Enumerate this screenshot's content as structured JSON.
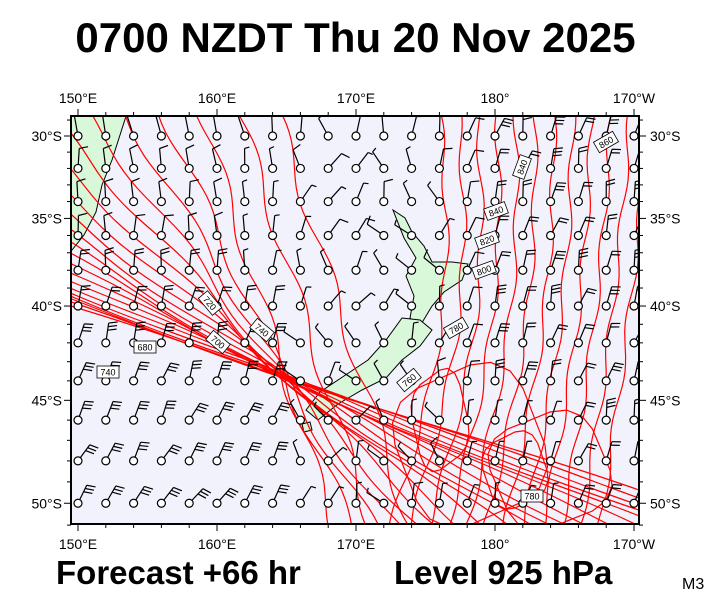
{
  "title": "0700 NZDT Thu 20 Nov 2025",
  "footer": {
    "forecast": "Forecast +66 hr",
    "level": "Level 925 hPa",
    "model": "M3"
  },
  "map": {
    "lon_labels": [
      "150°E",
      "160°E",
      "170°E",
      "180°",
      "170°W"
    ],
    "lat_labels": [
      "30°S",
      "35°S",
      "40°S",
      "45°S",
      "50°S"
    ],
    "extent": {
      "lon": [
        149.5,
        190.4
      ],
      "lat": [
        -28.8,
        -51.3
      ]
    },
    "contour_labels": [
      "860",
      "840",
      "840",
      "820",
      "800",
      "780",
      "760",
      "740",
      "720",
      "700",
      "680",
      "740",
      "780"
    ],
    "colors": {
      "ocean": "#f2f2fc",
      "land": "#d9f7d9",
      "contour": "#ff0000",
      "barb": "#000000"
    }
  }
}
